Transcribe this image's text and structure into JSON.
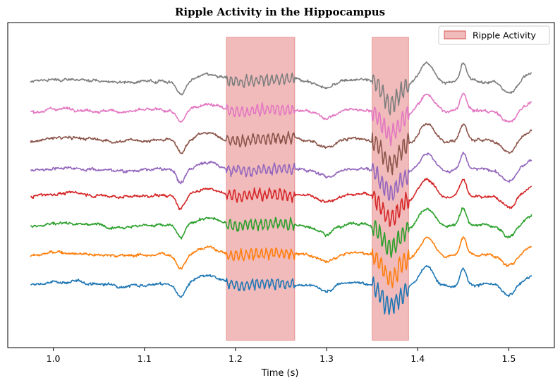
{
  "chart_data": {
    "type": "line",
    "title": "Ripple Activity in the Hippocampus",
    "xlabel": "Time (s)",
    "ylabel": "",
    "xlim": [
      0.95,
      1.55
    ],
    "ylim": [
      -0.2,
      8.6
    ],
    "x_range": [
      0.975,
      1.525
    ],
    "xticks": [
      "1.0",
      "1.1",
      "1.2",
      "1.3",
      "1.4",
      "1.5"
    ],
    "xtick_values": [
      1.0,
      1.1,
      1.2,
      1.3,
      1.4,
      1.5
    ],
    "y_ticks_visible": false,
    "grid": false,
    "legend": {
      "position": "top-right",
      "entries": [
        "Ripple Activity"
      ]
    },
    "ripple_windows": [
      {
        "start": 1.19,
        "end": 1.265
      },
      {
        "start": 1.35,
        "end": 1.39
      }
    ],
    "ripple_color": "#e58383",
    "series": [
      {
        "offset": 1.5,
        "color": "#1f77b4"
      },
      {
        "offset": 2.3,
        "color": "#ff7f0e"
      },
      {
        "offset": 3.1,
        "color": "#2ca02c"
      },
      {
        "offset": 3.9,
        "color": "#d62728"
      },
      {
        "offset": 4.6,
        "color": "#9467bd"
      },
      {
        "offset": 5.4,
        "color": "#8c564b"
      },
      {
        "offset": 6.2,
        "color": "#e377c2"
      },
      {
        "offset": 7.0,
        "color": "#7f7f7f"
      }
    ]
  }
}
